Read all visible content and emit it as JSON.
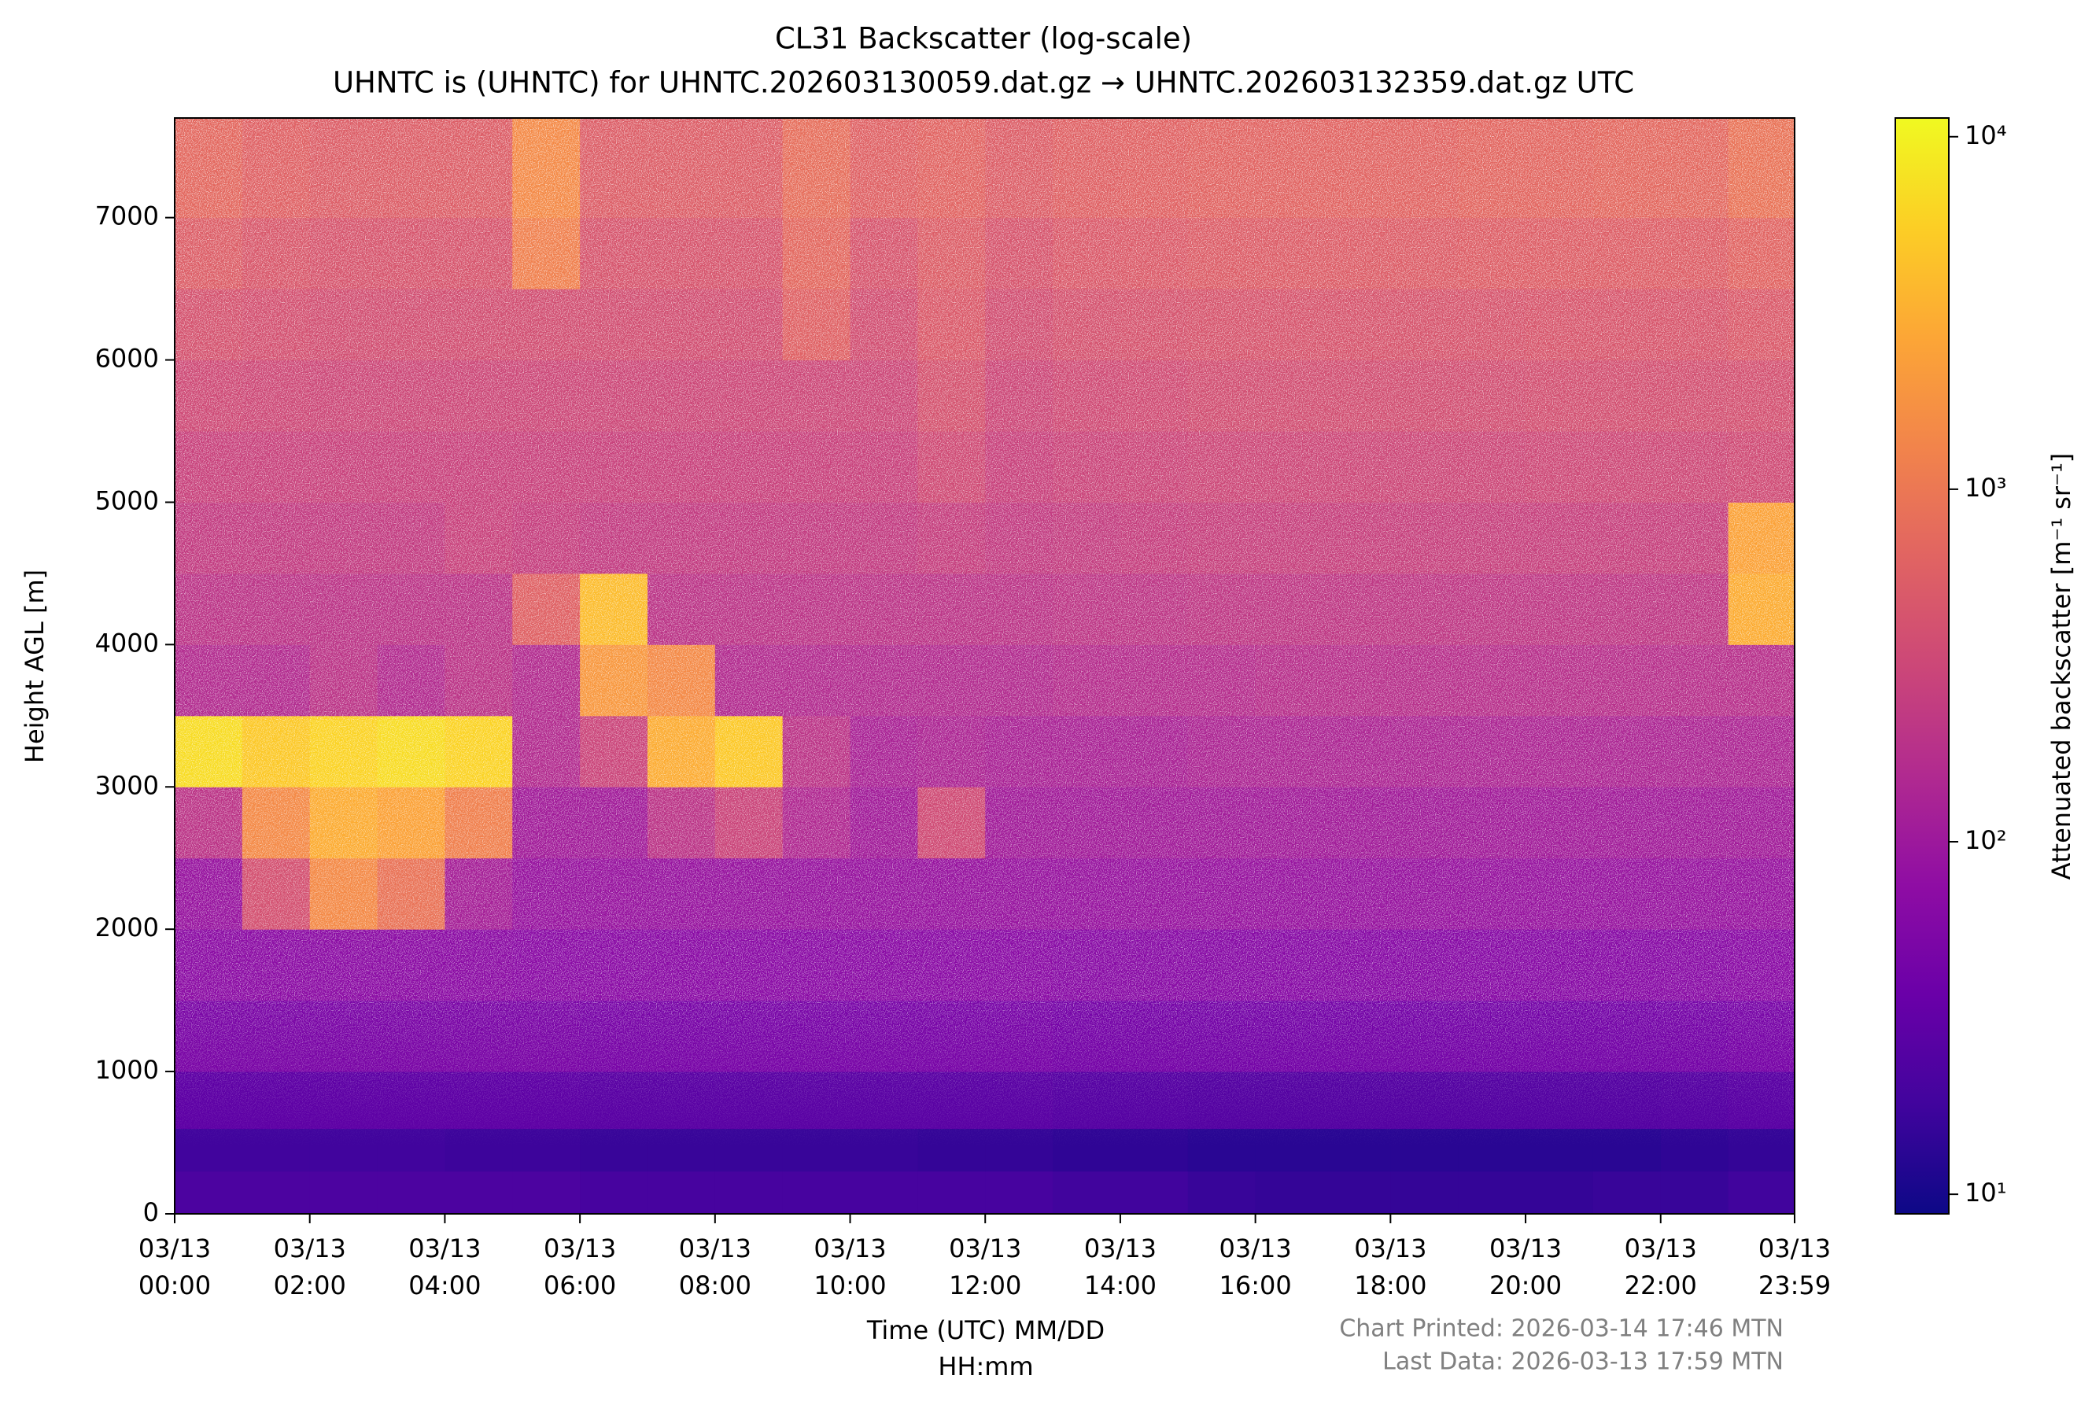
{
  "chart_data": {
    "type": "heatmap",
    "title": "CL31 Backscatter (log-scale)",
    "subtitle": "UHNTC is (UHNTC) for UHNTC.202603130059.dat.gz → UHNTC.202603132359.dat.gz UTC",
    "xlabel": [
      "Time (UTC) MM/DD",
      "HH:mm"
    ],
    "ylabel": "Height AGL [m]",
    "colorbar_label": "Attenuated backscatter [m⁻¹ sr⁻¹]",
    "footer": [
      "Chart Printed: 2026-03-14 17:46 MTN",
      "Last Data: 2026-03-13 17:59 MTN"
    ],
    "colormap": "plasma",
    "log_color": true,
    "clim": [
      8.8,
      11300
    ],
    "cticks": [
      {
        "value": 10,
        "label": "10¹"
      },
      {
        "value": 100,
        "label": "10²"
      },
      {
        "value": 1000,
        "label": "10³"
      },
      {
        "value": 10000,
        "label": "10⁴"
      }
    ],
    "xlim": [
      0,
      23.983
    ],
    "xticks": [
      {
        "value": 0,
        "label": [
          "03/13",
          "00:00"
        ]
      },
      {
        "value": 2,
        "label": [
          "03/13",
          "02:00"
        ]
      },
      {
        "value": 4,
        "label": [
          "03/13",
          "04:00"
        ]
      },
      {
        "value": 6,
        "label": [
          "03/13",
          "06:00"
        ]
      },
      {
        "value": 8,
        "label": [
          "03/13",
          "08:00"
        ]
      },
      {
        "value": 10,
        "label": [
          "03/13",
          "10:00"
        ]
      },
      {
        "value": 12,
        "label": [
          "03/13",
          "12:00"
        ]
      },
      {
        "value": 14,
        "label": [
          "03/13",
          "14:00"
        ]
      },
      {
        "value": 16,
        "label": [
          "03/13",
          "16:00"
        ]
      },
      {
        "value": 18,
        "label": [
          "03/13",
          "18:00"
        ]
      },
      {
        "value": 20,
        "label": [
          "03/13",
          "20:00"
        ]
      },
      {
        "value": 22,
        "label": [
          "03/13",
          "22:00"
        ]
      },
      {
        "value": 23.983,
        "label": [
          "03/13",
          "23:59"
        ]
      }
    ],
    "ylim": [
      0,
      7700
    ],
    "yticks": [
      0,
      1000,
      2000,
      3000,
      4000,
      5000,
      6000,
      7000
    ],
    "x_edges": [
      0,
      1,
      2,
      3,
      4,
      5,
      6,
      7,
      8,
      9,
      10,
      11,
      12,
      13,
      14,
      15,
      16,
      17,
      18,
      19,
      20,
      21,
      22,
      23,
      23.983
    ],
    "y_edges": [
      0,
      300,
      600,
      1000,
      1500,
      2000,
      2500,
      3000,
      3500,
      4000,
      4500,
      5000,
      5500,
      6000,
      6500,
      7000,
      7700
    ],
    "z": [
      [
        22,
        22,
        22,
        22,
        22,
        22,
        20,
        20,
        20,
        20,
        20,
        20,
        20,
        18,
        18,
        16,
        15,
        15,
        15,
        15,
        15,
        16,
        16,
        18
      ],
      [
        18,
        18,
        18,
        18,
        17,
        17,
        16,
        16,
        16,
        16,
        16,
        15,
        15,
        14,
        14,
        13,
        13,
        13,
        13,
        13,
        13,
        13,
        14,
        15
      ],
      [
        30,
        30,
        30,
        30,
        30,
        30,
        28,
        28,
        28,
        28,
        28,
        28,
        28,
        26,
        26,
        25,
        25,
        25,
        25,
        25,
        25,
        25,
        26,
        28
      ],
      [
        50,
        50,
        50,
        50,
        50,
        50,
        48,
        48,
        48,
        48,
        48,
        48,
        48,
        46,
        46,
        45,
        45,
        45,
        45,
        45,
        45,
        45,
        46,
        48
      ],
      [
        70,
        70,
        70,
        70,
        70,
        68,
        68,
        68,
        68,
        68,
        68,
        68,
        68,
        66,
        66,
        65,
        65,
        65,
        65,
        65,
        65,
        65,
        66,
        68
      ],
      [
        90,
        400,
        1500,
        900,
        120,
        90,
        90,
        90,
        90,
        90,
        90,
        90,
        90,
        90,
        90,
        90,
        90,
        90,
        90,
        90,
        90,
        90,
        90,
        90
      ],
      [
        200,
        1500,
        3000,
        2500,
        1200,
        110,
        110,
        200,
        300,
        150,
        110,
        350,
        110,
        110,
        110,
        110,
        110,
        110,
        110,
        110,
        110,
        110,
        110,
        110
      ],
      [
        7000,
        5000,
        6000,
        7000,
        6000,
        160,
        300,
        3000,
        5000,
        200,
        130,
        140,
        130,
        130,
        130,
        140,
        140,
        140,
        140,
        140,
        140,
        140,
        140,
        140
      ],
      [
        160,
        160,
        200,
        160,
        200,
        160,
        2000,
        1500,
        160,
        160,
        160,
        160,
        160,
        170,
        170,
        170,
        180,
        180,
        180,
        180,
        180,
        180,
        180,
        180
      ],
      [
        200,
        200,
        200,
        200,
        200,
        600,
        4000,
        200,
        200,
        200,
        200,
        200,
        200,
        210,
        210,
        220,
        220,
        220,
        220,
        220,
        220,
        220,
        220,
        3000
      ],
      [
        240,
        240,
        240,
        240,
        280,
        260,
        240,
        240,
        240,
        240,
        240,
        260,
        240,
        250,
        260,
        270,
        270,
        270,
        270,
        270,
        270,
        270,
        270,
        2500
      ],
      [
        280,
        280,
        280,
        280,
        280,
        280,
        280,
        280,
        280,
        280,
        280,
        350,
        280,
        300,
        310,
        320,
        320,
        320,
        320,
        320,
        330,
        330,
        330,
        350
      ],
      [
        340,
        330,
        320,
        320,
        320,
        320,
        320,
        320,
        320,
        320,
        320,
        420,
        320,
        350,
        360,
        380,
        380,
        380,
        380,
        380,
        390,
        390,
        390,
        400
      ],
      [
        420,
        400,
        380,
        380,
        380,
        380,
        380,
        380,
        380,
        600,
        380,
        500,
        380,
        420,
        430,
        450,
        450,
        450,
        450,
        450,
        460,
        460,
        460,
        500
      ],
      [
        550,
        480,
        450,
        450,
        450,
        1200,
        450,
        450,
        450,
        700,
        450,
        550,
        450,
        500,
        520,
        540,
        540,
        540,
        540,
        560,
        560,
        560,
        560,
        650
      ],
      [
        700,
        600,
        550,
        550,
        550,
        1500,
        550,
        550,
        550,
        800,
        600,
        650,
        550,
        600,
        620,
        650,
        650,
        650,
        650,
        680,
        680,
        700,
        700,
        900
      ]
    ]
  }
}
